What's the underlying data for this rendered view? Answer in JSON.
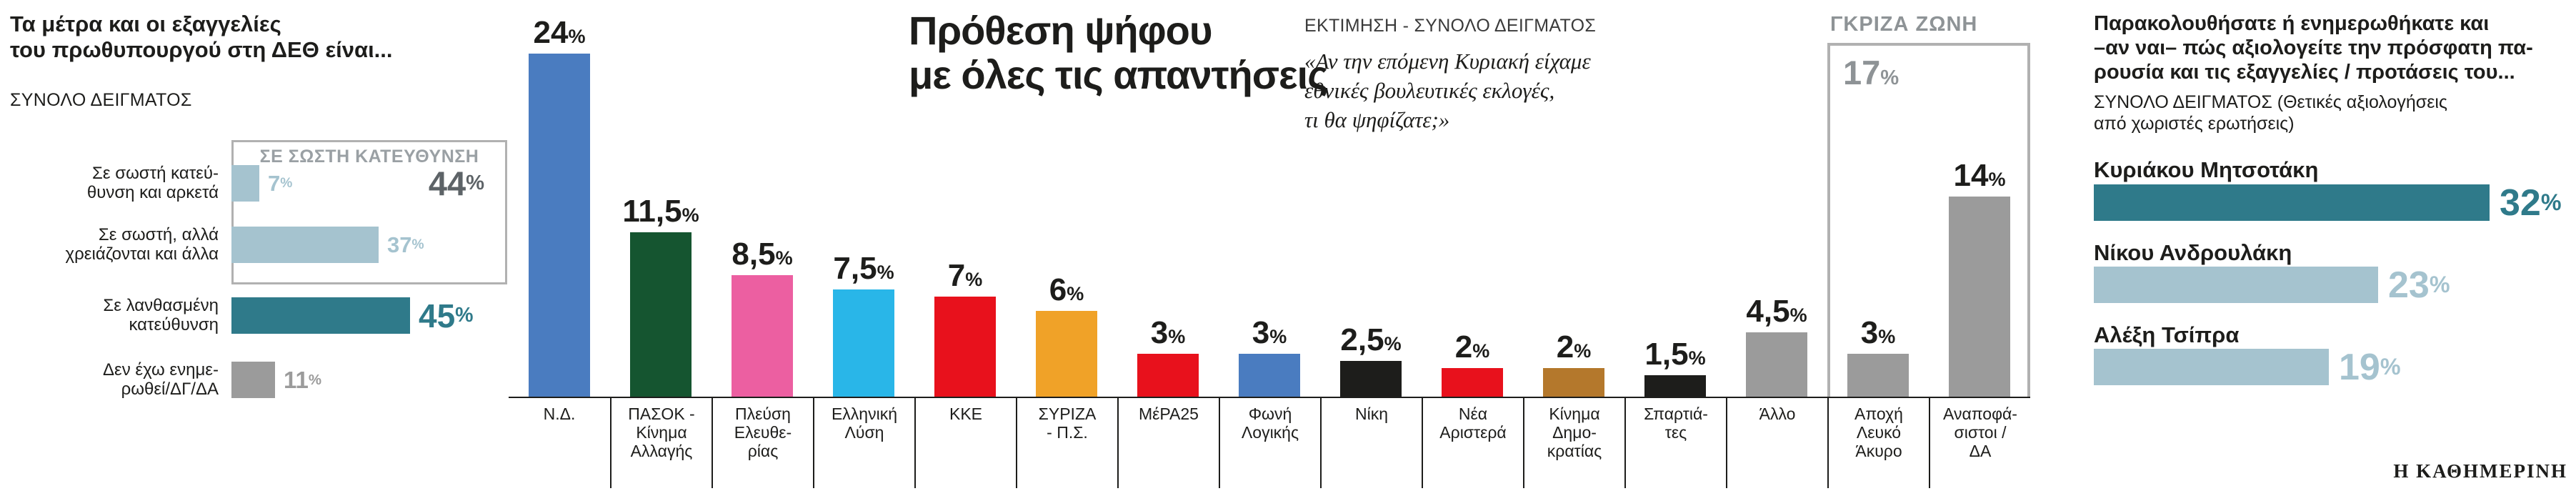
{
  "strings": {
    "percent_sign": "%"
  },
  "left_panel": {
    "title": "Τα μέτρα και οι εξαγγελίες\nτου πρωθυπουργού στη ΔΕΘ είναι...",
    "sample_label": "ΣΥΝΟΛΟ ΔΕΙΓΜΑΤΟΣ"
  },
  "main_chart": {
    "title": "Πρόθεση ψήφου\nμε όλες τις απαντήσεις",
    "subtitle": "ΕΚΤΙΜΗΣΗ - ΣΥΝΟΛΟ ΔΕΙΓΜΑΤΟΣ",
    "question": "«Αν την επόμενη Κυριακή είχαμε\nεθνικές βουλευτικές εκλογές,\nτι θα ψηφίζατε;»"
  },
  "right_panel": {
    "title": "Παρακολουθήσατε ή ενημερωθήκατε και\n–αν ναι– πώς αξιολογείτε την πρόσφατη πα-\nρουσία και τις εξαγγελίες / προτάσεις του...",
    "sample_label": "ΣΥΝΟΛΟ ΔΕΙΓΜΑΤΟΣ (Θετικές αξιολογήσεις\nαπό χωριστές ερωτήσεις)"
  },
  "branding": "Η ΚΑΘΗΜΕΡΙΝΗ",
  "chart_data": [
    {
      "id": "deth-measures-evaluation",
      "type": "bar",
      "orientation": "horizontal",
      "title": "Τα μέτρα και οι εξαγγελίες του πρωθυπουργού στη ΔΕΘ είναι...",
      "subtitle": "ΣΥΝΟΛΟ ΔΕΙΓΜΑΤΟΣ",
      "unit": "%",
      "bars": [
        {
          "category": "Σε σωστή κατεύθυνση και αρκετά",
          "label_lines": "Σε σωστή κατεύ-\nθυνση και αρκετά",
          "value": 7,
          "value_label": "7",
          "color": "#a5c3cf",
          "value_color": "#a5c3cf"
        },
        {
          "category": "Σε σωστή, αλλά χρειάζονται και άλλα",
          "label_lines": "Σε σωστή, αλλά\nχρειάζονται και άλλα",
          "value": 37,
          "value_label": "37",
          "color": "#a5c3cf",
          "value_color": "#a5c3cf"
        },
        {
          "category": "Σε λανθασμένη κατεύθυνση",
          "label_lines": "Σε λανθασμένη\nκατεύθυνση",
          "value": 45,
          "value_label": "45",
          "color": "#2f7a8a",
          "value_color": "#2f7a8a"
        },
        {
          "category": "Δεν έχω ενημερωθεί/ΔΓ/ΔΑ",
          "label_lines": "Δεν έχω ενημε-\nρωθεί/ΔΓ/ΔΑ",
          "value": 11,
          "value_label": "11",
          "color": "#9b9b9b",
          "value_color": "#9b9b9b"
        }
      ],
      "group_annotation": {
        "label": "ΣΕ ΣΩΣΤΗ ΚΑΤΕΥΘΥΝΣΗ",
        "value": 44,
        "value_label": "44",
        "covers": [
          0,
          1
        ]
      }
    },
    {
      "id": "voting-intention-all-answers",
      "type": "bar",
      "orientation": "vertical",
      "title": "Πρόθεση ψήφου με όλες τις απαντήσεις",
      "subtitle": "ΕΚΤΙΜΗΣΗ - ΣΥΝΟΛΟ ΔΕΙΓΜΑΤΟΣ",
      "question": "«Αν την επόμενη Κυριακή είχαμε εθνικές βουλευτικές εκλογές, τι θα ψηφίζατε;»",
      "unit": "%",
      "ylim": [
        0,
        24
      ],
      "bars": [
        {
          "category": "Ν.Δ.",
          "label_lines": "Ν.Δ.",
          "value": 24,
          "value_label": "24",
          "color": "#4a7cc0"
        },
        {
          "category": "ΠΑΣΟΚ - Κίνημα Αλλαγής",
          "label_lines": "ΠΑΣΟΚ -\nΚίνημα\nΑλλαγής",
          "value": 11.5,
          "value_label": "11,5",
          "color": "#155530"
        },
        {
          "category": "Πλεύση Ελευθερίας",
          "label_lines": "Πλεύση\nΕλευθε-\nρίας",
          "value": 8.5,
          "value_label": "8,5",
          "color": "#ec5fa1"
        },
        {
          "category": "Ελληνική Λύση",
          "label_lines": "Ελληνική\nΛύση",
          "value": 7.5,
          "value_label": "7,5",
          "color": "#29b6e8"
        },
        {
          "category": "ΚΚΕ",
          "label_lines": "ΚΚΕ",
          "value": 7,
          "value_label": "7",
          "color": "#e8111c"
        },
        {
          "category": "ΣΥΡΙΖΑ - Π.Σ.",
          "label_lines": "ΣΥΡΙΖΑ\n- Π.Σ.",
          "value": 6,
          "value_label": "6",
          "color": "#f0a228"
        },
        {
          "category": "ΜέΡΑ25",
          "label_lines": "ΜέΡΑ25",
          "value": 3,
          "value_label": "3",
          "color": "#e8111c"
        },
        {
          "category": "Φωνή Λογικής",
          "label_lines": "Φωνή\nΛογικής",
          "value": 3,
          "value_label": "3",
          "color": "#4a7cc0"
        },
        {
          "category": "Νίκη",
          "label_lines": "Νίκη",
          "value": 2.5,
          "value_label": "2,5",
          "color": "#1d1d1b"
        },
        {
          "category": "Νέα Αριστερά",
          "label_lines": "Νέα\nΑριστερά",
          "value": 2,
          "value_label": "2",
          "color": "#e8111c"
        },
        {
          "category": "Κίνημα Δημοκρατίας",
          "label_lines": "Κίνημα\nΔημο-\nκρατίας",
          "value": 2,
          "value_label": "2",
          "color": "#b4782c"
        },
        {
          "category": "Σπαρτιάτες",
          "label_lines": "Σπαρτιά-\nτες",
          "value": 1.5,
          "value_label": "1,5",
          "color": "#1d1d1b"
        },
        {
          "category": "Άλλο",
          "label_lines": "Άλλο",
          "value": 4.5,
          "value_label": "4,5",
          "color": "#9b9b9b"
        },
        {
          "category": "Αποχή Λευκό Άκυρο",
          "label_lines": "Αποχή\nΛευκό\nΆκυρο",
          "value": 3,
          "value_label": "3",
          "color": "#9b9b9b"
        },
        {
          "category": "Αναποφάσιστοι / ΔΑ",
          "label_lines": "Αναποφά-\nσιστοι /\nΔΑ",
          "value": 14,
          "value_label": "14",
          "color": "#9b9b9b"
        }
      ],
      "gray_zone": {
        "label": "ΓΚΡΙΖΑ ΖΩΝΗ",
        "value": 17,
        "value_label": "17",
        "covers": [
          13,
          14
        ]
      }
    },
    {
      "id": "deth-presence-positive-evaluations",
      "type": "bar",
      "orientation": "horizontal",
      "title": "Παρακολουθήσατε ή ενημερωθήκατε και –αν ναι– πώς αξιολογείτε την πρόσφατη παρουσία και τις εξαγγελίες / προτάσεις του...",
      "subtitle": "ΣΥΝΟΛΟ ΔΕΙΓΜΑΤΟΣ (Θετικές αξιολογήσεις από χωριστές ερωτήσεις)",
      "unit": "%",
      "bars": [
        {
          "category": "Κυριάκου Μητσοτάκη",
          "value": 32,
          "value_label": "32",
          "color": "#2f7a8a",
          "value_color": "#2f7a8a"
        },
        {
          "category": "Νίκου Ανδρουλάκη",
          "value": 23,
          "value_label": "23",
          "color": "#a5c3cf",
          "value_color": "#a5c3cf"
        },
        {
          "category": "Αλέξη Τσίπρα",
          "value": 19,
          "value_label": "19",
          "color": "#a5c3cf",
          "value_color": "#a5c3cf"
        }
      ]
    }
  ]
}
